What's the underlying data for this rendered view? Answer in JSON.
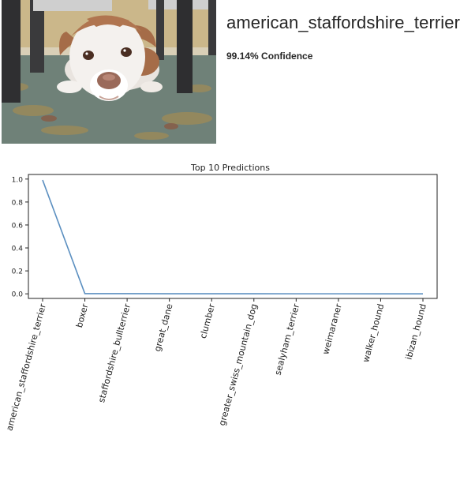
{
  "prediction": {
    "label": "american_staffordshire_terrier",
    "confidence_text": "99.14% Confidence"
  },
  "photo": {
    "subject": "pit-bull-terrier-dog-lying-on-rug",
    "colors": {
      "wall": "#cbb78a",
      "rug": "#6f8178",
      "dog_white": "#f4f1ee",
      "dog_brown": "#a56c48",
      "chair": "#3a3a3c"
    }
  },
  "chart_data": {
    "type": "line",
    "title": "Top 10 Predictions",
    "categories": [
      "american_staffordshire_terrier",
      "boxer",
      "staffordshire_bullterrier",
      "great_dane",
      "clumber",
      "greater_swiss_mountain_dog",
      "sealyham_terrier",
      "weimaraner",
      "walker_hound",
      "ibizan_hound"
    ],
    "values": [
      0.9914,
      0.002,
      0.0015,
      0.001,
      0.0008,
      0.0006,
      0.0005,
      0.0004,
      0.0003,
      0.0002
    ],
    "yticks": [
      "0.0",
      "0.2",
      "0.4",
      "0.6",
      "0.8",
      "1.0"
    ],
    "ylim": [
      -0.04,
      1.04
    ],
    "grid": false,
    "line_color": "#5b8fc0"
  }
}
